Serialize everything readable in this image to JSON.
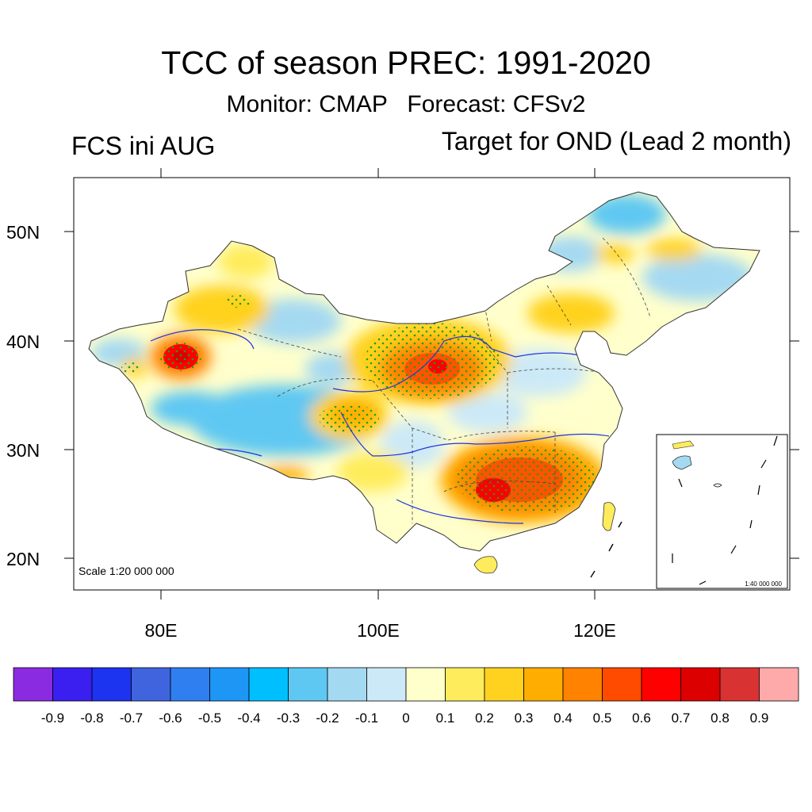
{
  "title": "TCC of season PREC: 1991-2020",
  "subtitle": "Monitor: CMAP   Forecast: CFSv2",
  "left_label": "FCS ini AUG",
  "right_label": "Target for OND (Lead 2 month)",
  "scale_label": "Scale 1:20 000 000",
  "inset_scale_label": "1:40 000 000",
  "axes": {
    "y_ticks": [
      "50N",
      "40N",
      "30N",
      "20N"
    ],
    "x_ticks": [
      "80E",
      "100E",
      "120E"
    ]
  },
  "colorbar": {
    "colors": [
      "#8a2be2",
      "#3b1ff0",
      "#1c33f0",
      "#3f64de",
      "#2f7ff0",
      "#1e96f5",
      "#00bfff",
      "#5fc8f2",
      "#a4d9f2",
      "#cce9f8",
      "#ffffcc",
      "#ffec5c",
      "#ffd21f",
      "#ffad00",
      "#ff8200",
      "#ff4b00",
      "#ff0000",
      "#dd0000",
      "#d83232",
      "#ffaaaa"
    ],
    "labels": [
      "-0.9",
      "-0.8",
      "-0.7",
      "-0.6",
      "-0.5",
      "-0.4",
      "-0.3",
      "-0.2",
      "-0.1",
      "0",
      "0.1",
      "0.2",
      "0.3",
      "0.4",
      "0.5",
      "0.6",
      "0.7",
      "0.8",
      "0.9"
    ]
  }
}
